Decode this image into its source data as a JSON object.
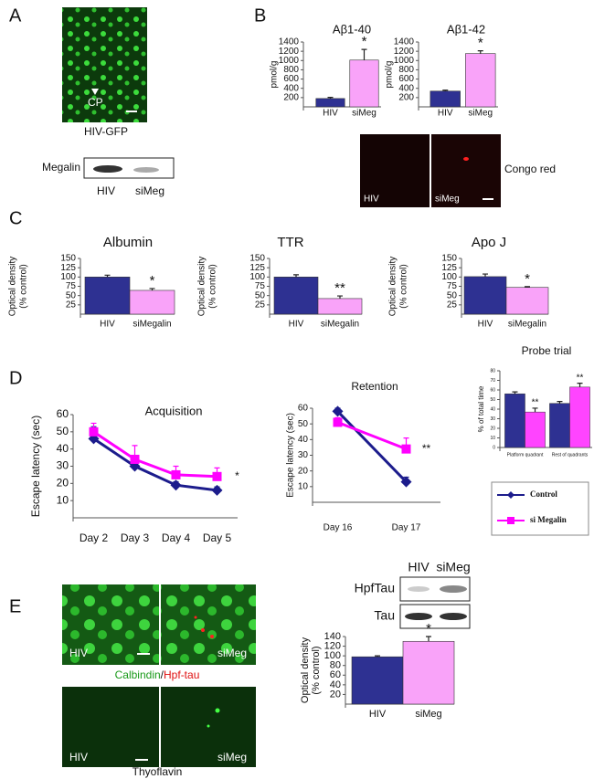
{
  "figure": {
    "panels": [
      "A",
      "B",
      "C",
      "D",
      "E"
    ],
    "A": {
      "arrow_label": "CP",
      "image_label": "HIV-GFP",
      "blot_label": "Megalin",
      "lanes": [
        "HIV",
        "siMeg"
      ]
    },
    "B": {
      "image_lanes": [
        "HIV",
        "siMeg"
      ],
      "stain": "Congo red"
    },
    "E": {
      "top_lanes": [
        "HIV",
        "siMeg"
      ],
      "stain_parts": [
        "Calbindin",
        "/",
        "Hpf-tau"
      ],
      "bottom_lanes": [
        "HIV",
        "siMeg"
      ],
      "bottom_stain": "Thyoflavin",
      "blot_lanes": [
        "HIV",
        "siMeg"
      ],
      "blot_rows": [
        "HpfTau",
        "Tau"
      ]
    }
  },
  "chart_data": [
    {
      "type": "bar",
      "title": "Aβ1-40",
      "y_label": [
        "pmol/g"
      ],
      "categories": [
        "HIV",
        "siMeg"
      ],
      "values": [
        180,
        1010
      ],
      "errors": [
        25,
        230
      ],
      "colors": [
        "#2e3192",
        "#f9a3f9"
      ],
      "ylim": [
        0,
        1400
      ],
      "yticks": [
        200,
        400,
        600,
        800,
        1000,
        1200,
        1400
      ],
      "annotations": [
        "*"
      ]
    },
    {
      "type": "bar",
      "title": "Aβ1-42",
      "y_label": [
        "pmol/g"
      ],
      "categories": [
        "HIV",
        "siMeg"
      ],
      "values": [
        340,
        1150
      ],
      "errors": [
        20,
        60
      ],
      "colors": [
        "#2e3192",
        "#f9a3f9"
      ],
      "ylim": [
        0,
        1400
      ],
      "yticks": [
        200,
        400,
        600,
        800,
        1000,
        1200,
        1400
      ],
      "annotations": [
        "*"
      ]
    },
    {
      "type": "bar",
      "title": "Albumin",
      "y_label": [
        "Optical density",
        "(% control)"
      ],
      "categories": [
        "HIV",
        "siMegalin"
      ],
      "values": [
        100,
        64
      ],
      "errors": [
        5,
        5
      ],
      "colors": [
        "#2e3192",
        "#f9a3f9"
      ],
      "ylim": [
        0,
        150
      ],
      "yticks": [
        25,
        50,
        75,
        100,
        125,
        150
      ],
      "annotations": [
        "*"
      ]
    },
    {
      "type": "bar",
      "title": "TTR",
      "y_label": [
        "Optical density",
        "(% control)"
      ],
      "categories": [
        "HIV",
        "siMegalin"
      ],
      "values": [
        100,
        42
      ],
      "errors": [
        6,
        7
      ],
      "colors": [
        "#2e3192",
        "#f9a3f9"
      ],
      "ylim": [
        0,
        150
      ],
      "yticks": [
        25,
        50,
        75,
        100,
        125,
        150
      ],
      "annotations": [
        "**"
      ]
    },
    {
      "type": "bar",
      "title": "Apo J",
      "y_label": [
        "Optical density",
        "(% control)"
      ],
      "categories": [
        "HIV",
        "siMegalin"
      ],
      "values": [
        101,
        72
      ],
      "errors": [
        7,
        2
      ],
      "colors": [
        "#2e3192",
        "#f9a3f9"
      ],
      "ylim": [
        0,
        150
      ],
      "yticks": [
        25,
        50,
        75,
        100,
        125,
        150
      ],
      "annotations": [
        "*"
      ]
    },
    {
      "type": "line",
      "title": "Acquisition",
      "y_label": [
        "Escape latency (sec)"
      ],
      "categories": [
        "Day 2",
        "Day 3",
        "Day 4",
        "Day 5"
      ],
      "series": [
        {
          "name": "Control",
          "color": "#1c1c8c",
          "values": [
            46,
            30,
            19,
            16
          ],
          "errors": [
            7,
            3,
            2,
            2
          ]
        },
        {
          "name": "si Megalin",
          "color": "#ff00ff",
          "values": [
            50,
            34,
            25,
            24
          ],
          "errors": [
            5,
            8,
            5,
            5
          ]
        }
      ],
      "ylim": [
        0,
        60
      ],
      "yticks": [
        10,
        20,
        30,
        40,
        50,
        60
      ],
      "annotations": [
        "*"
      ]
    },
    {
      "type": "line",
      "title": "Retention",
      "y_label": [
        "Escape latency (sec)"
      ],
      "categories": [
        "Day 16",
        "Day 17"
      ],
      "series": [
        {
          "color": "#1c1c8c",
          "values": [
            58,
            13
          ],
          "errors": [
            2,
            3
          ]
        },
        {
          "color": "#ff00ff",
          "values": [
            51,
            34
          ],
          "errors": [
            3,
            7
          ]
        }
      ],
      "ylim": [
        0,
        60
      ],
      "yticks": [
        10,
        20,
        30,
        40,
        50,
        60
      ],
      "annotations": [
        "**"
      ]
    },
    {
      "type": "bar",
      "title": "Probe trial",
      "y_label": [
        "% of total time"
      ],
      "categories": [
        "Platform quadrant",
        "Rest of quadrants"
      ],
      "series": [
        {
          "color": "#2e3192",
          "values": [
            56,
            46
          ],
          "errors": [
            2,
            2
          ]
        },
        {
          "color": "#ff44ff",
          "values": [
            37,
            63
          ],
          "errors": [
            4,
            4
          ]
        }
      ],
      "ylim": [
        0,
        80
      ],
      "yticks": [
        0,
        10,
        20,
        30,
        40,
        50,
        60,
        70,
        80
      ],
      "annotations": [
        "**",
        "**"
      ]
    },
    {
      "type": "bar",
      "y_label": [
        "Optical density",
        "(% control)"
      ],
      "categories": [
        "HIV",
        "siMeg"
      ],
      "values": [
        98,
        130
      ],
      "errors": [
        2,
        10
      ],
      "colors": [
        "#2e3192",
        "#f9a3f9"
      ],
      "ylim": [
        0,
        140
      ],
      "yticks": [
        20,
        40,
        60,
        80,
        100,
        120,
        140
      ],
      "annotations": [
        "*"
      ]
    }
  ]
}
